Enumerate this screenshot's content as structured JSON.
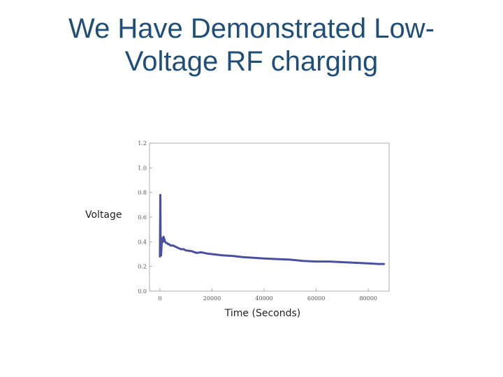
{
  "slide": {
    "title_line1": "We Have Demonstrated Low-",
    "title_line2": "Voltage RF charging"
  },
  "chart_data": {
    "type": "line",
    "xlabel": "Time (Seconds)",
    "ylabel": "Voltage",
    "xlim": [
      -4000,
      88000
    ],
    "ylim": [
      0.0,
      1.2
    ],
    "xticks": [
      0,
      20000,
      40000,
      60000,
      80000
    ],
    "xtick_labels": [
      "0",
      "20000",
      "40000",
      "60000",
      "80000"
    ],
    "yticks": [
      0.0,
      0.2,
      0.4,
      0.6,
      0.8,
      1.0,
      1.2
    ],
    "ytick_labels": [
      "0.0",
      "0.2",
      "0.4",
      "0.6",
      "0.8",
      "1.0",
      "1.2"
    ],
    "grid": false,
    "line_color": "#4a50a0",
    "series": [
      {
        "x": [
          0,
          150,
          300,
          450,
          600,
          800,
          1000,
          1200,
          1400,
          1700,
          2000,
          2400,
          2800,
          3200,
          3600,
          4000,
          5000,
          6000,
          7000,
          8000,
          9000,
          10000,
          12000,
          14000,
          16000,
          18000,
          20000,
          24000,
          28000,
          32000,
          36000,
          40000,
          45000,
          50000,
          55000,
          60000,
          65000,
          70000,
          75000,
          80000,
          84000,
          86000
        ],
        "y": [
          0.28,
          0.78,
          0.32,
          0.29,
          0.36,
          0.42,
          0.43,
          0.4,
          0.44,
          0.42,
          0.4,
          0.39,
          0.39,
          0.38,
          0.38,
          0.37,
          0.37,
          0.36,
          0.35,
          0.34,
          0.34,
          0.33,
          0.325,
          0.31,
          0.315,
          0.305,
          0.3,
          0.29,
          0.285,
          0.275,
          0.27,
          0.265,
          0.26,
          0.255,
          0.245,
          0.24,
          0.24,
          0.235,
          0.23,
          0.225,
          0.22,
          0.22
        ]
      }
    ]
  }
}
